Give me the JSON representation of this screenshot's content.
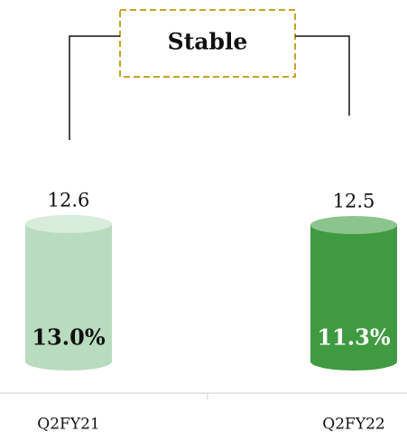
{
  "chart_data": {
    "type": "cylinder",
    "annotation": "Stable",
    "categories": [
      "Q2FY21",
      "Q2FY22"
    ],
    "values": [
      12.6,
      12.5
    ],
    "inner_values": [
      13.0,
      11.3
    ],
    "inner_value_labels": [
      "13.0%",
      "11.3%"
    ],
    "colors": [
      "#b9dbbf",
      "#3f9a42"
    ],
    "top_colors": [
      "#d8ecdb",
      "#8cc48e"
    ],
    "ylim": [
      0,
      13
    ]
  }
}
